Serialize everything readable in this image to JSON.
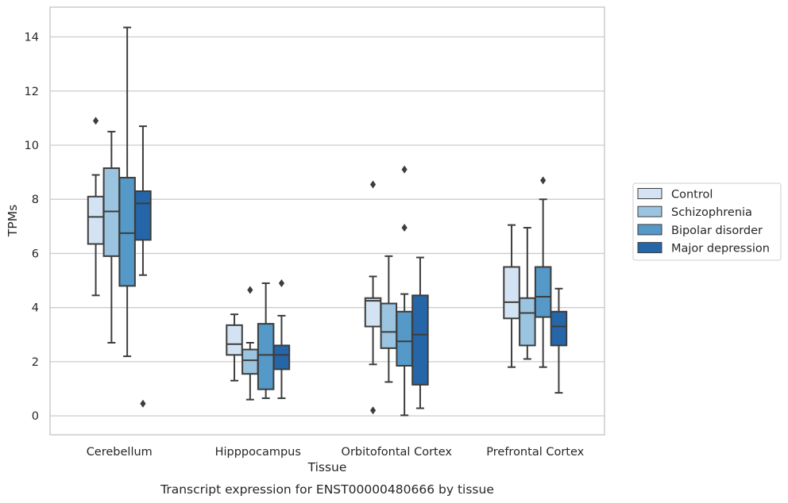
{
  "caption": "Transcript expression for ENST00000480666 by tissue",
  "chart_data": {
    "type": "boxplot",
    "xlabel": "Tissue",
    "ylabel": "TPMs",
    "ylim": [
      -0.7,
      15.1
    ],
    "yticks": [
      0,
      2,
      4,
      6,
      8,
      10,
      12,
      14
    ],
    "grid": "horizontal",
    "legend_placement": "right",
    "categories": [
      "Cerebellum",
      "Hipppocampus",
      "Orbitofontal Cortex",
      "Prefrontal Cortex"
    ],
    "series": [
      {
        "name": "Control",
        "color": "#d4e3f3",
        "boxes": [
          {
            "whislo": 4.45,
            "q1": 6.35,
            "med": 7.35,
            "q3": 8.1,
            "whishi": 8.9,
            "fliers": [
              10.9
            ]
          },
          {
            "whislo": 1.3,
            "q1": 2.25,
            "med": 2.65,
            "q3": 3.35,
            "whishi": 3.75,
            "fliers": []
          },
          {
            "whislo": 1.9,
            "q1": 3.3,
            "med": 4.25,
            "q3": 4.35,
            "whishi": 5.15,
            "fliers": [
              8.55,
              0.2
            ]
          },
          {
            "whislo": 1.8,
            "q1": 3.6,
            "med": 4.2,
            "q3": 5.5,
            "whishi": 7.05,
            "fliers": []
          }
        ]
      },
      {
        "name": "Schizophrenia",
        "color": "#9ac4df",
        "boxes": [
          {
            "whislo": 2.7,
            "q1": 5.9,
            "med": 7.55,
            "q3": 9.15,
            "whishi": 10.5,
            "fliers": []
          },
          {
            "whislo": 0.6,
            "q1": 1.55,
            "med": 2.05,
            "q3": 2.45,
            "whishi": 2.7,
            "fliers": [
              4.65
            ]
          },
          {
            "whislo": 1.25,
            "q1": 2.5,
            "med": 3.1,
            "q3": 4.15,
            "whishi": 5.9,
            "fliers": []
          },
          {
            "whislo": 2.1,
            "q1": 2.6,
            "med": 3.8,
            "q3": 4.35,
            "whishi": 6.95,
            "fliers": []
          }
        ]
      },
      {
        "name": "Bipolar disorder",
        "color": "#5499c7",
        "boxes": [
          {
            "whislo": 2.2,
            "q1": 4.8,
            "med": 6.75,
            "q3": 8.8,
            "whishi": 14.35,
            "fliers": []
          },
          {
            "whislo": 0.65,
            "q1": 0.98,
            "med": 2.25,
            "q3": 3.4,
            "whishi": 4.9,
            "fliers": []
          },
          {
            "whislo": 0.02,
            "q1": 1.85,
            "med": 2.75,
            "q3": 3.85,
            "whishi": 4.5,
            "fliers": [
              9.1,
              6.95
            ]
          },
          {
            "whislo": 1.8,
            "q1": 3.65,
            "med": 4.4,
            "q3": 5.5,
            "whishi": 8.0,
            "fliers": [
              8.7
            ]
          }
        ]
      },
      {
        "name": "Major depression",
        "color": "#2566a8",
        "boxes": [
          {
            "whislo": 5.2,
            "q1": 6.5,
            "med": 7.85,
            "q3": 8.3,
            "whishi": 10.7,
            "fliers": [
              0.45
            ]
          },
          {
            "whislo": 0.65,
            "q1": 1.72,
            "med": 2.25,
            "q3": 2.6,
            "whishi": 3.7,
            "fliers": [
              4.9
            ]
          },
          {
            "whislo": 0.28,
            "q1": 1.15,
            "med": 3.0,
            "q3": 4.45,
            "whishi": 5.85,
            "fliers": []
          },
          {
            "whislo": 0.85,
            "q1": 2.6,
            "med": 3.3,
            "q3": 3.85,
            "whishi": 4.7,
            "fliers": []
          }
        ]
      }
    ]
  }
}
